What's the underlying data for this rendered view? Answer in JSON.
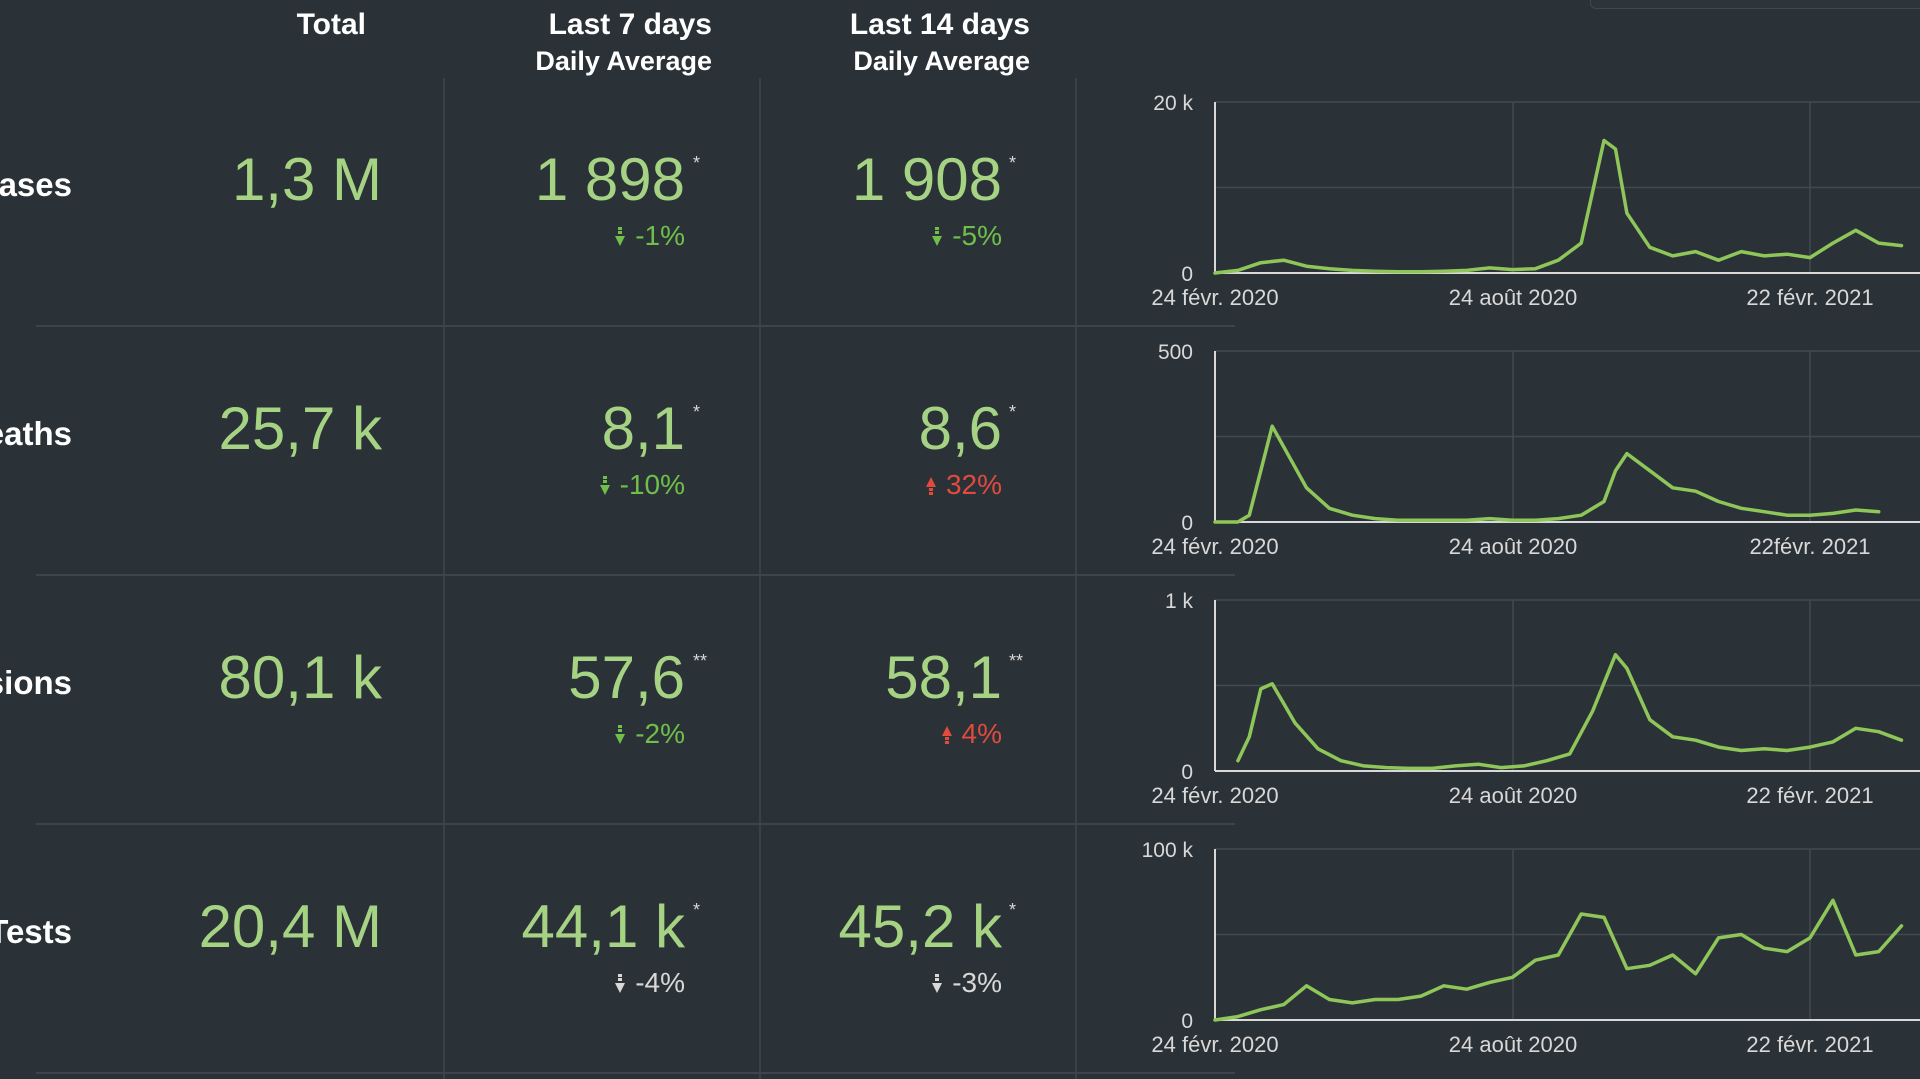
{
  "columns": {
    "total": "Total",
    "last7": [
      "Last 7 days",
      "Daily Average"
    ],
    "last14": [
      "Last 14 days",
      "Daily Average"
    ]
  },
  "rows": [
    {
      "label": "Cases",
      "total": "1,3 M",
      "avg7": "1 898",
      "mark7": "*",
      "chg7": "-1%",
      "dir7": "down",
      "tone7": "good",
      "avg14": "1 908",
      "mark14": "*",
      "chg14": "-5%",
      "dir14": "down",
      "tone14": "good"
    },
    {
      "label": "Deaths",
      "total": "25,7 k",
      "avg7": "8,1",
      "mark7": "*",
      "chg7": "-10%",
      "dir7": "down",
      "tone7": "good",
      "avg14": "8,6",
      "mark14": "*",
      "chg14": "32%",
      "dir14": "up",
      "tone14": "bad"
    },
    {
      "label": "Admissions",
      "total": "80,1 k",
      "avg7": "57,6",
      "mark7": "**",
      "chg7": "-2%",
      "dir7": "down",
      "tone7": "good",
      "avg14": "58,1",
      "mark14": "**",
      "chg14": "4%",
      "dir14": "up",
      "tone14": "bad"
    },
    {
      "label": "Tests",
      "total": "20,4 M",
      "avg7": "44,1 k",
      "mark7": "*",
      "chg7": "-4%",
      "dir7": "down",
      "tone7": "neutral",
      "avg14": "45,2 k",
      "mark14": "*",
      "chg14": "-3%",
      "dir14": "down",
      "tone14": "neutral"
    }
  ],
  "colors": {
    "line": "#8fc65a",
    "good": "#6fbf4a",
    "bad": "#e04a3f",
    "neutral": "#d8d8d8",
    "value": "#a6d383"
  },
  "chart_data": [
    {
      "type": "line",
      "ylim": [
        0,
        20000
      ],
      "yticks": [
        "0",
        "20 k"
      ],
      "xticks": [
        "24 févr. 2020",
        "24 août 2020",
        "22 févr. 2021"
      ],
      "grid": true,
      "x": [
        "2020-02-24",
        "2020-03-09",
        "2020-03-23",
        "2020-04-06",
        "2020-04-20",
        "2020-05-04",
        "2020-05-18",
        "2020-06-01",
        "2020-06-15",
        "2020-06-29",
        "2020-07-13",
        "2020-07-27",
        "2020-08-10",
        "2020-08-24",
        "2020-09-07",
        "2020-09-21",
        "2020-10-05",
        "2020-10-19",
        "2020-10-26",
        "2020-11-02",
        "2020-11-16",
        "2020-11-30",
        "2020-12-14",
        "2020-12-28",
        "2021-01-11",
        "2021-01-25",
        "2021-02-08",
        "2021-02-22",
        "2021-03-08",
        "2021-03-22",
        "2021-04-05",
        "2021-04-19"
      ],
      "values": [
        0,
        300,
        1200,
        1500,
        800,
        500,
        300,
        200,
        150,
        150,
        200,
        300,
        600,
        400,
        500,
        1500,
        3500,
        15500,
        14500,
        7000,
        3000,
        2000,
        2500,
        1500,
        2500,
        2000,
        2200,
        1800,
        3500,
        5000,
        3500,
        3200
      ]
    },
    {
      "type": "line",
      "ylim": [
        0,
        500
      ],
      "yticks": [
        "0",
        "500"
      ],
      "xticks": [
        "24 févr. 2020",
        "24 août 2020",
        "22févr. 2021"
      ],
      "grid": true,
      "x": [
        "2020-02-24",
        "2020-03-09",
        "2020-03-16",
        "2020-03-23",
        "2020-03-30",
        "2020-04-06",
        "2020-04-20",
        "2020-05-04",
        "2020-05-18",
        "2020-06-01",
        "2020-06-15",
        "2020-06-29",
        "2020-07-13",
        "2020-07-27",
        "2020-08-10",
        "2020-08-24",
        "2020-09-07",
        "2020-09-21",
        "2020-10-05",
        "2020-10-19",
        "2020-10-26",
        "2020-11-02",
        "2020-11-16",
        "2020-11-30",
        "2020-12-14",
        "2020-12-28",
        "2021-01-11",
        "2021-01-25",
        "2021-02-08",
        "2021-02-22",
        "2021-03-08",
        "2021-03-22",
        "2021-04-05"
      ],
      "values": [
        0,
        0,
        20,
        150,
        280,
        220,
        100,
        40,
        20,
        10,
        5,
        5,
        5,
        5,
        10,
        5,
        5,
        10,
        20,
        60,
        150,
        200,
        150,
        100,
        90,
        60,
        40,
        30,
        20,
        20,
        25,
        35,
        30
      ]
    },
    {
      "type": "line",
      "ylim": [
        0,
        1000
      ],
      "yticks": [
        "0",
        "1 k"
      ],
      "xticks": [
        "24 févr. 2020",
        "24 août 2020",
        "22 févr. 2021"
      ],
      "grid": true,
      "x": [
        "2020-03-09",
        "2020-03-16",
        "2020-03-23",
        "2020-03-30",
        "2020-04-13",
        "2020-04-27",
        "2020-05-11",
        "2020-05-25",
        "2020-06-08",
        "2020-06-22",
        "2020-07-06",
        "2020-07-20",
        "2020-08-03",
        "2020-08-17",
        "2020-08-31",
        "2020-09-14",
        "2020-09-28",
        "2020-10-12",
        "2020-10-26",
        "2020-11-02",
        "2020-11-16",
        "2020-11-30",
        "2020-12-14",
        "2020-12-28",
        "2021-01-11",
        "2021-01-25",
        "2021-02-08",
        "2021-02-22",
        "2021-03-08",
        "2021-03-22",
        "2021-04-05",
        "2021-04-19"
      ],
      "values": [
        60,
        200,
        480,
        510,
        280,
        130,
        60,
        30,
        20,
        15,
        15,
        30,
        40,
        20,
        30,
        60,
        100,
        350,
        680,
        600,
        300,
        200,
        180,
        140,
        120,
        130,
        120,
        140,
        170,
        250,
        230,
        180
      ]
    },
    {
      "type": "line",
      "ylim": [
        0,
        100000
      ],
      "yticks": [
        "0",
        "100 k"
      ],
      "xticks": [
        "24 févr. 2020",
        "24 août 2020",
        "22 févr. 2021"
      ],
      "grid": true,
      "x": [
        "2020-02-24",
        "2020-03-09",
        "2020-03-23",
        "2020-04-06",
        "2020-04-20",
        "2020-05-04",
        "2020-05-18",
        "2020-06-01",
        "2020-06-15",
        "2020-06-29",
        "2020-07-13",
        "2020-07-27",
        "2020-08-10",
        "2020-08-24",
        "2020-09-07",
        "2020-09-21",
        "2020-10-05",
        "2020-10-19",
        "2020-11-02",
        "2020-11-16",
        "2020-11-30",
        "2020-12-14",
        "2020-12-28",
        "2021-01-11",
        "2021-01-25",
        "2021-02-08",
        "2021-02-22",
        "2021-03-08",
        "2021-03-22",
        "2021-04-05",
        "2021-04-19"
      ],
      "values": [
        0,
        2000,
        6000,
        9000,
        20000,
        12000,
        10000,
        12000,
        12000,
        14000,
        20000,
        18000,
        22000,
        25000,
        35000,
        38000,
        62000,
        60000,
        30000,
        32000,
        38000,
        27000,
        48000,
        50000,
        42000,
        40000,
        48000,
        70000,
        38000,
        40000,
        55000
      ]
    }
  ]
}
